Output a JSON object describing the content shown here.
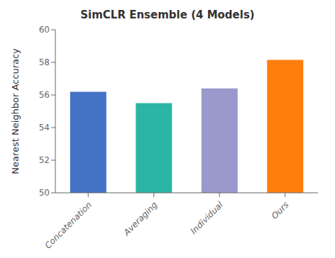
{
  "chart_data": {
    "type": "bar",
    "title": "SimCLR Ensemble (4 Models)",
    "categories": [
      "Concatenation",
      "Averaging",
      "Individual",
      "Ours"
    ],
    "values": [
      56.2,
      55.5,
      56.4,
      58.15
    ],
    "colors": [
      "#4472C4",
      "#2AB5A5",
      "#9999CC",
      "#FF7F0E"
    ],
    "ylabel": "Nearest Neighbor Accuracy",
    "ylim": [
      50,
      60
    ],
    "yticks": [
      50,
      52,
      54,
      56,
      58,
      60
    ],
    "grid": false
  }
}
